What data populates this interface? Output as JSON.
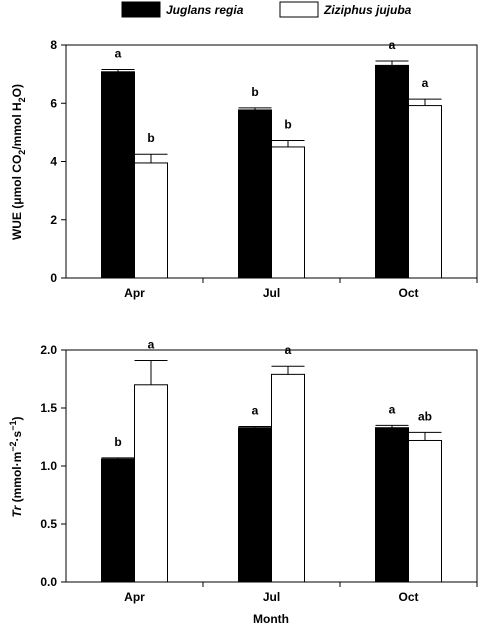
{
  "legend": [
    {
      "name": "Juglans regia",
      "color": "#000000"
    },
    {
      "name": "Ziziphus jujuba",
      "color": "#ffffff"
    }
  ],
  "xlabel": "Month",
  "chart_data": [
    {
      "type": "bar",
      "categories": [
        "Apr",
        "Jul",
        "Oct"
      ],
      "ylabel": {
        "prefix": "WUE (",
        "mu": "μ",
        "a": "mol CO",
        "sub1": "2",
        "b": "/mmol H",
        "sub2": "2",
        "c": "O)"
      },
      "ylim": [
        0,
        8
      ],
      "yticks": [
        0,
        2,
        4,
        6,
        8
      ],
      "series": [
        {
          "name": "Juglans regia",
          "color": "#000000",
          "values": [
            7.08,
            5.77,
            7.3
          ],
          "errors": [
            0.08,
            0.07,
            0.15
          ],
          "letters": [
            "a",
            "b",
            "a"
          ]
        },
        {
          "name": "Ziziphus jujuba",
          "color": "#ffffff",
          "values": [
            3.95,
            4.5,
            5.92
          ],
          "errors": [
            0.3,
            0.22,
            0.22
          ],
          "letters": [
            "b",
            "b",
            "a"
          ]
        }
      ]
    },
    {
      "type": "bar",
      "categories": [
        "Apr",
        "Jul",
        "Oct"
      ],
      "ylabel": {
        "prefix": "Tr",
        "a": " (mmol·m",
        "sup1": "−2",
        "b": "·s",
        "sup2": "−1",
        "c": ")"
      },
      "ylim": [
        0,
        2.0
      ],
      "yticks": [
        0.0,
        0.5,
        1.0,
        1.5,
        2.0
      ],
      "yticklabels": [
        "0.0",
        "0.5",
        "1.0",
        "1.5",
        "2.0"
      ],
      "series": [
        {
          "name": "Juglans regia",
          "color": "#000000",
          "values": [
            1.06,
            1.33,
            1.33
          ],
          "errors": [
            0.01,
            0.01,
            0.02
          ],
          "letters": [
            "b",
            "a",
            "a"
          ]
        },
        {
          "name": "Ziziphus jujuba",
          "color": "#ffffff",
          "values": [
            1.7,
            1.79,
            1.22
          ],
          "errors": [
            0.21,
            0.07,
            0.07
          ],
          "letters": [
            "a",
            "a",
            "ab"
          ]
        }
      ]
    }
  ]
}
